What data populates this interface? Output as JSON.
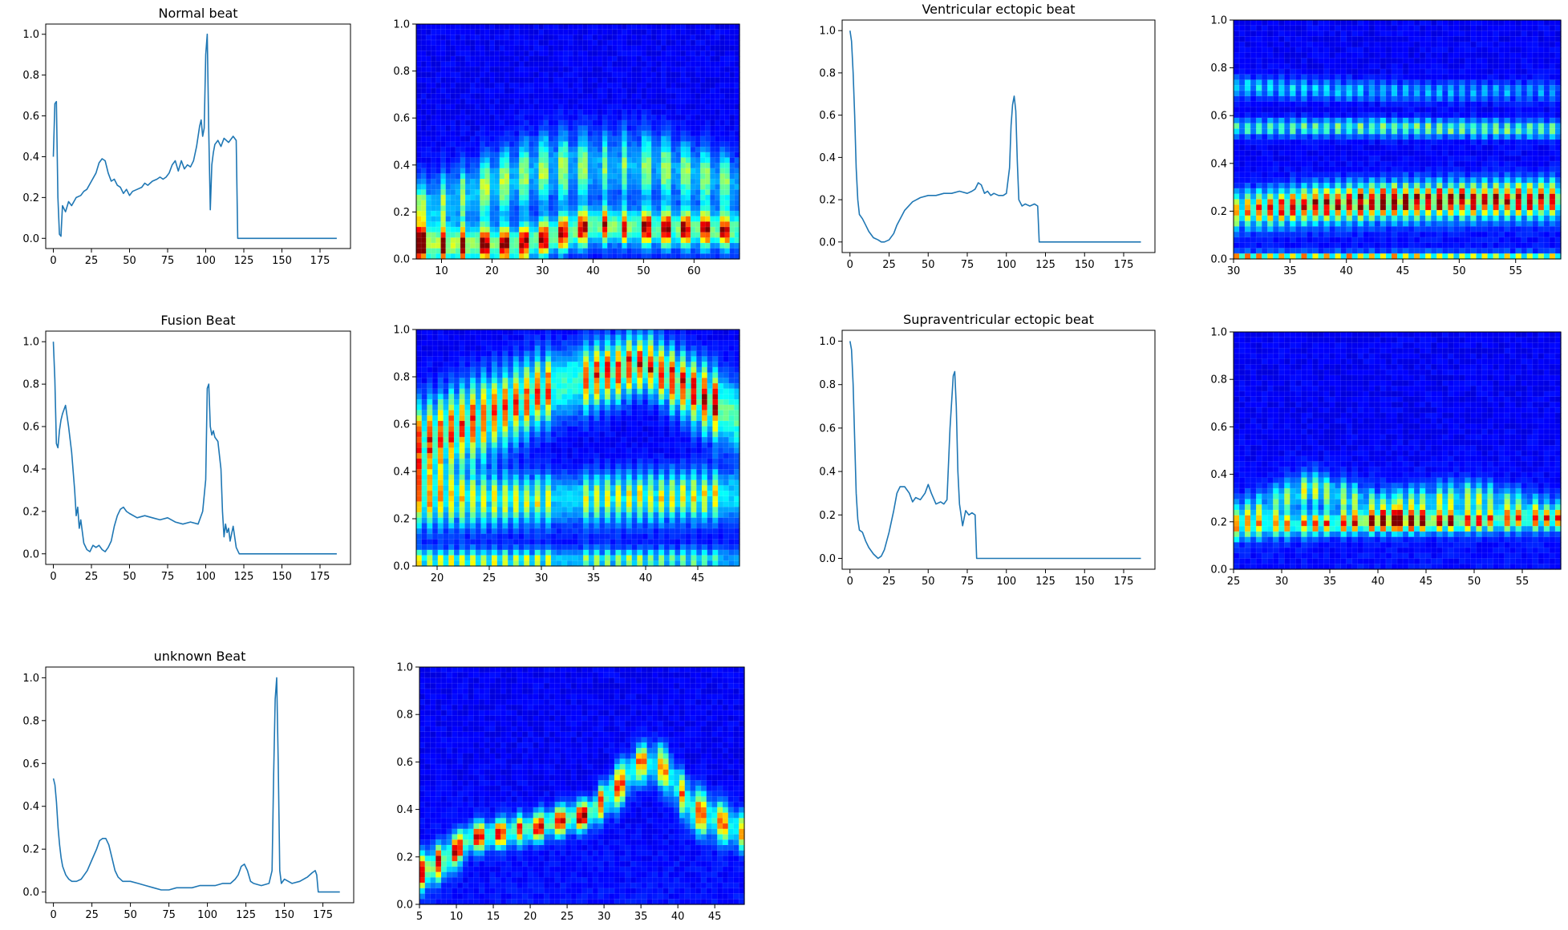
{
  "chart_data": [
    {
      "id": "normal-signal",
      "type": "line",
      "title": "Normal beat",
      "xlim": [
        -5,
        195
      ],
      "ylim": [
        -0.05,
        1.05
      ],
      "xticks": [
        0,
        25,
        50,
        75,
        100,
        125,
        150,
        175
      ],
      "yticks": [
        0.0,
        0.2,
        0.4,
        0.6,
        0.8,
        1.0
      ],
      "color": "#1f77b4",
      "x": [
        0,
        1,
        2,
        3,
        4,
        5,
        6,
        8,
        10,
        12,
        15,
        18,
        20,
        22,
        25,
        28,
        30,
        32,
        34,
        36,
        38,
        40,
        42,
        44,
        46,
        48,
        50,
        52,
        55,
        58,
        60,
        62,
        65,
        68,
        70,
        72,
        74,
        76,
        78,
        80,
        82,
        84,
        86,
        88,
        90,
        92,
        94,
        96,
        97,
        98,
        99,
        100,
        101,
        102,
        103,
        104,
        105,
        106,
        108,
        110,
        112,
        115,
        118,
        120,
        121,
        122,
        130,
        140,
        150,
        160,
        170,
        180,
        186
      ],
      "y": [
        0.4,
        0.66,
        0.67,
        0.2,
        0.02,
        0.01,
        0.16,
        0.13,
        0.18,
        0.16,
        0.2,
        0.21,
        0.23,
        0.24,
        0.28,
        0.32,
        0.37,
        0.39,
        0.38,
        0.32,
        0.28,
        0.29,
        0.26,
        0.25,
        0.22,
        0.24,
        0.21,
        0.23,
        0.24,
        0.25,
        0.27,
        0.26,
        0.28,
        0.29,
        0.3,
        0.29,
        0.3,
        0.32,
        0.36,
        0.38,
        0.33,
        0.38,
        0.34,
        0.36,
        0.35,
        0.38,
        0.45,
        0.55,
        0.58,
        0.5,
        0.54,
        0.9,
        1.0,
        0.52,
        0.14,
        0.36,
        0.42,
        0.46,
        0.48,
        0.45,
        0.49,
        0.47,
        0.5,
        0.48,
        0.0,
        0.0,
        0.0,
        0.0,
        0.0,
        0.0,
        0.0,
        0.0,
        0.0
      ]
    },
    {
      "id": "normal-heatmap",
      "type": "heatmap",
      "xlim": [
        5,
        69
      ],
      "ylim": [
        0,
        1
      ],
      "xticks": [
        10,
        20,
        30,
        40,
        50,
        60
      ],
      "yticks": [
        0.0,
        0.2,
        0.4,
        0.6,
        0.8,
        1.0
      ],
      "cols": 66,
      "rows": 44,
      "seed": 11,
      "stripes": 16,
      "bands": [
        {
          "x": [
            5,
            25,
            40,
            69
          ],
          "center": [
            0.06,
            0.06,
            0.14,
            0.12
          ],
          "width": [
            0.05,
            0.05,
            0.05,
            0.05
          ],
          "amp": [
            1.0,
            0.85,
            0.85,
            0.8
          ]
        },
        {
          "x": [
            5,
            30,
            50,
            69
          ],
          "center": [
            0.2,
            0.38,
            0.4,
            0.32
          ],
          "width": [
            0.08,
            0.1,
            0.1,
            0.08
          ],
          "amp": [
            0.45,
            0.42,
            0.4,
            0.38
          ]
        }
      ]
    },
    {
      "id": "ventricular-signal",
      "type": "line",
      "title": "Ventricular ectopic beat",
      "xlim": [
        -5,
        195
      ],
      "ylim": [
        -0.05,
        1.05
      ],
      "xticks": [
        0,
        25,
        50,
        75,
        100,
        125,
        150,
        175
      ],
      "yticks": [
        0.0,
        0.2,
        0.4,
        0.6,
        0.8,
        1.0
      ],
      "color": "#1f77b4",
      "x": [
        0,
        1,
        2,
        3,
        4,
        5,
        6,
        8,
        10,
        12,
        15,
        18,
        20,
        22,
        25,
        28,
        30,
        35,
        40,
        45,
        50,
        55,
        60,
        65,
        70,
        75,
        78,
        80,
        82,
        84,
        86,
        88,
        90,
        92,
        95,
        98,
        100,
        102,
        103,
        104,
        105,
        106,
        107,
        108,
        110,
        112,
        115,
        118,
        120,
        121,
        122,
        130,
        140,
        150,
        160,
        170,
        180,
        186
      ],
      "y": [
        1.0,
        0.95,
        0.8,
        0.6,
        0.35,
        0.2,
        0.13,
        0.11,
        0.08,
        0.05,
        0.02,
        0.01,
        0.0,
        0.0,
        0.01,
        0.04,
        0.08,
        0.15,
        0.19,
        0.21,
        0.22,
        0.22,
        0.23,
        0.23,
        0.24,
        0.23,
        0.24,
        0.25,
        0.28,
        0.27,
        0.23,
        0.24,
        0.22,
        0.23,
        0.22,
        0.22,
        0.23,
        0.35,
        0.55,
        0.65,
        0.69,
        0.62,
        0.38,
        0.2,
        0.17,
        0.18,
        0.17,
        0.18,
        0.17,
        0.0,
        0.0,
        0.0,
        0.0,
        0.0,
        0.0,
        0.0,
        0.0,
        0.0
      ]
    },
    {
      "id": "ventricular-heatmap",
      "type": "heatmap",
      "xlim": [
        30,
        59
      ],
      "ylim": [
        0,
        1
      ],
      "xticks": [
        30,
        35,
        40,
        45,
        50,
        55
      ],
      "yticks": [
        0.0,
        0.2,
        0.4,
        0.6,
        0.8,
        1.0
      ],
      "cols": 58,
      "rows": 44,
      "seed": 23,
      "stripes": 29,
      "bands": [
        {
          "x": [
            30,
            38,
            44,
            59
          ],
          "center": [
            0.2,
            0.23,
            0.24,
            0.25
          ],
          "width": [
            0.05,
            0.05,
            0.05,
            0.05
          ],
          "amp": [
            0.6,
            0.9,
            0.92,
            0.85
          ]
        },
        {
          "x": [
            30,
            45,
            59
          ],
          "center": [
            0.55,
            0.55,
            0.54
          ],
          "width": [
            0.025,
            0.025,
            0.025
          ],
          "amp": [
            0.35,
            0.42,
            0.42
          ]
        },
        {
          "x": [
            30,
            45,
            59
          ],
          "center": [
            0.72,
            0.7,
            0.7
          ],
          "width": [
            0.03,
            0.03,
            0.03
          ],
          "amp": [
            0.28,
            0.22,
            0.18
          ]
        },
        {
          "x": [
            30,
            59
          ],
          "center": [
            0.01,
            0.01
          ],
          "width": [
            0.012,
            0.012
          ],
          "amp": [
            0.6,
            0.5
          ]
        }
      ]
    },
    {
      "id": "fusion-signal",
      "type": "line",
      "title": "Fusion Beat",
      "xlim": [
        -5,
        195
      ],
      "ylim": [
        -0.05,
        1.05
      ],
      "xticks": [
        0,
        25,
        50,
        75,
        100,
        125,
        150,
        175
      ],
      "yticks": [
        0.0,
        0.2,
        0.4,
        0.6,
        0.8,
        1.0
      ],
      "color": "#1f77b4",
      "x": [
        0,
        1,
        2,
        3,
        4,
        5,
        6,
        7,
        8,
        10,
        12,
        14,
        15,
        16,
        17,
        18,
        20,
        22,
        24,
        26,
        28,
        30,
        32,
        34,
        36,
        38,
        40,
        42,
        44,
        46,
        48,
        50,
        55,
        60,
        65,
        70,
        75,
        80,
        85,
        90,
        95,
        98,
        100,
        101,
        102,
        103,
        104,
        105,
        106,
        108,
        110,
        111,
        112,
        113,
        114,
        115,
        116,
        118,
        120,
        122,
        125,
        130,
        140,
        150,
        160,
        170,
        180,
        186
      ],
      "y": [
        1.0,
        0.82,
        0.52,
        0.5,
        0.58,
        0.63,
        0.66,
        0.68,
        0.7,
        0.6,
        0.48,
        0.3,
        0.18,
        0.22,
        0.12,
        0.16,
        0.05,
        0.02,
        0.01,
        0.04,
        0.03,
        0.04,
        0.02,
        0.01,
        0.03,
        0.06,
        0.13,
        0.18,
        0.21,
        0.22,
        0.2,
        0.19,
        0.17,
        0.18,
        0.17,
        0.16,
        0.17,
        0.15,
        0.14,
        0.15,
        0.14,
        0.2,
        0.35,
        0.78,
        0.8,
        0.6,
        0.56,
        0.58,
        0.55,
        0.53,
        0.4,
        0.2,
        0.08,
        0.14,
        0.1,
        0.12,
        0.06,
        0.13,
        0.03,
        0.0,
        0.0,
        0.0,
        0.0,
        0.0,
        0.0,
        0.0,
        0.0,
        0.0
      ]
    },
    {
      "id": "fusion-heatmap",
      "type": "heatmap",
      "xlim": [
        18,
        49
      ],
      "ylim": [
        0,
        1
      ],
      "xticks": [
        20,
        25,
        30,
        35,
        40,
        45
      ],
      "yticks": [
        0.0,
        0.2,
        0.4,
        0.6,
        0.8,
        1.0
      ],
      "cols": 60,
      "rows": 44,
      "seed": 37,
      "stripes": 31,
      "bands": [
        {
          "x": [
            18,
            30,
            40,
            49
          ],
          "center": [
            0.5,
            0.74,
            0.86,
            0.62
          ],
          "width": [
            0.12,
            0.1,
            0.08,
            0.1
          ],
          "amp": [
            0.75,
            0.72,
            0.8,
            0.85
          ]
        },
        {
          "x": [
            18,
            30,
            49
          ],
          "center": [
            0.28,
            0.28,
            0.3
          ],
          "width": [
            0.08,
            0.07,
            0.07
          ],
          "amp": [
            0.55,
            0.5,
            0.55
          ]
        },
        {
          "x": [
            18,
            49
          ],
          "center": [
            0.02,
            0.03
          ],
          "width": [
            0.03,
            0.03
          ],
          "amp": [
            0.55,
            0.35
          ]
        }
      ]
    },
    {
      "id": "supraventricular-signal",
      "type": "line",
      "title": "Supraventricular ectopic beat",
      "xlim": [
        -5,
        195
      ],
      "ylim": [
        -0.05,
        1.05
      ],
      "xticks": [
        0,
        25,
        50,
        75,
        100,
        125,
        150,
        175
      ],
      "yticks": [
        0.0,
        0.2,
        0.4,
        0.6,
        0.8,
        1.0
      ],
      "color": "#1f77b4",
      "x": [
        0,
        1,
        2,
        3,
        4,
        5,
        6,
        8,
        10,
        12,
        15,
        18,
        20,
        22,
        25,
        28,
        30,
        32,
        35,
        38,
        40,
        42,
        45,
        48,
        50,
        52,
        55,
        58,
        60,
        62,
        64,
        66,
        67,
        68,
        69,
        70,
        72,
        74,
        76,
        78,
        80,
        81,
        82,
        90,
        100,
        110,
        120,
        130,
        140,
        150,
        160,
        170,
        180,
        186
      ],
      "y": [
        1.0,
        0.96,
        0.8,
        0.55,
        0.3,
        0.18,
        0.13,
        0.12,
        0.08,
        0.05,
        0.02,
        0.0,
        0.01,
        0.04,
        0.12,
        0.22,
        0.3,
        0.33,
        0.33,
        0.3,
        0.26,
        0.28,
        0.27,
        0.3,
        0.34,
        0.3,
        0.25,
        0.26,
        0.25,
        0.27,
        0.6,
        0.84,
        0.86,
        0.7,
        0.4,
        0.25,
        0.15,
        0.22,
        0.2,
        0.21,
        0.2,
        0.0,
        0.0,
        0.0,
        0.0,
        0.0,
        0.0,
        0.0,
        0.0,
        0.0,
        0.0,
        0.0,
        0.0,
        0.0
      ]
    },
    {
      "id": "supraventricular-heatmap",
      "type": "heatmap",
      "xlim": [
        25,
        59
      ],
      "ylim": [
        0,
        1
      ],
      "xticks": [
        25,
        30,
        35,
        40,
        45,
        50,
        55
      ],
      "yticks": [
        0.0,
        0.2,
        0.4,
        0.6,
        0.8,
        1.0
      ],
      "cols": 58,
      "rows": 44,
      "seed": 53,
      "stripes": 34,
      "bands": [
        {
          "x": [
            25,
            35,
            42,
            50,
            59
          ],
          "center": [
            0.18,
            0.19,
            0.2,
            0.2,
            0.21
          ],
          "width": [
            0.04,
            0.03,
            0.03,
            0.03,
            0.03
          ],
          "amp": [
            0.45,
            0.7,
            0.95,
            0.7,
            0.55
          ]
        },
        {
          "x": [
            25,
            33,
            40,
            50,
            59
          ],
          "center": [
            0.22,
            0.34,
            0.26,
            0.3,
            0.24
          ],
          "width": [
            0.05,
            0.05,
            0.05,
            0.05,
            0.04
          ],
          "amp": [
            0.25,
            0.5,
            0.4,
            0.48,
            0.25
          ]
        }
      ]
    },
    {
      "id": "unknown-signal",
      "type": "line",
      "title": "unknown Beat",
      "xlim": [
        -5,
        195
      ],
      "ylim": [
        -0.05,
        1.05
      ],
      "xticks": [
        0,
        25,
        50,
        75,
        100,
        125,
        150,
        175
      ],
      "yticks": [
        0.0,
        0.2,
        0.4,
        0.6,
        0.8,
        1.0
      ],
      "color": "#1f77b4",
      "x": [
        0,
        1,
        2,
        3,
        4,
        5,
        6,
        8,
        10,
        12,
        15,
        18,
        20,
        22,
        25,
        28,
        30,
        32,
        34,
        36,
        38,
        40,
        42,
        45,
        48,
        50,
        55,
        60,
        65,
        70,
        75,
        80,
        85,
        90,
        95,
        100,
        105,
        110,
        115,
        118,
        120,
        122,
        124,
        126,
        128,
        130,
        135,
        140,
        142,
        143,
        144,
        145,
        146,
        147,
        148,
        150,
        155,
        160,
        165,
        168,
        170,
        171,
        172,
        175,
        180,
        186
      ],
      "y": [
        0.53,
        0.5,
        0.42,
        0.3,
        0.22,
        0.16,
        0.12,
        0.08,
        0.06,
        0.05,
        0.05,
        0.06,
        0.08,
        0.1,
        0.15,
        0.2,
        0.24,
        0.25,
        0.25,
        0.22,
        0.16,
        0.1,
        0.07,
        0.05,
        0.05,
        0.05,
        0.04,
        0.03,
        0.02,
        0.01,
        0.01,
        0.02,
        0.02,
        0.02,
        0.03,
        0.03,
        0.03,
        0.04,
        0.04,
        0.06,
        0.08,
        0.12,
        0.13,
        0.1,
        0.05,
        0.04,
        0.03,
        0.04,
        0.1,
        0.55,
        0.9,
        1.0,
        0.6,
        0.1,
        0.04,
        0.06,
        0.04,
        0.05,
        0.07,
        0.09,
        0.1,
        0.08,
        0.0,
        0.0,
        0.0,
        0.0
      ]
    },
    {
      "id": "unknown-heatmap",
      "type": "heatmap",
      "xlim": [
        5,
        49
      ],
      "ylim": [
        0,
        1
      ],
      "xticks": [
        5,
        10,
        15,
        20,
        25,
        30,
        35,
        40,
        45
      ],
      "yticks": [
        0.0,
        0.2,
        0.4,
        0.6,
        0.8,
        1.0
      ],
      "cols": 60,
      "rows": 44,
      "seed": 71,
      "stripes": 44,
      "bands": [
        {
          "x": [
            5,
            8,
            12,
            20,
            28,
            32,
            35,
            38,
            42,
            49
          ],
          "center": [
            0.13,
            0.18,
            0.28,
            0.32,
            0.38,
            0.5,
            0.6,
            0.58,
            0.4,
            0.3
          ],
          "width": [
            0.05,
            0.05,
            0.04,
            0.04,
            0.04,
            0.06,
            0.05,
            0.06,
            0.06,
            0.05
          ],
          "amp": [
            0.9,
            0.85,
            0.75,
            0.75,
            0.85,
            0.7,
            0.65,
            0.6,
            0.7,
            0.6
          ]
        }
      ]
    }
  ]
}
